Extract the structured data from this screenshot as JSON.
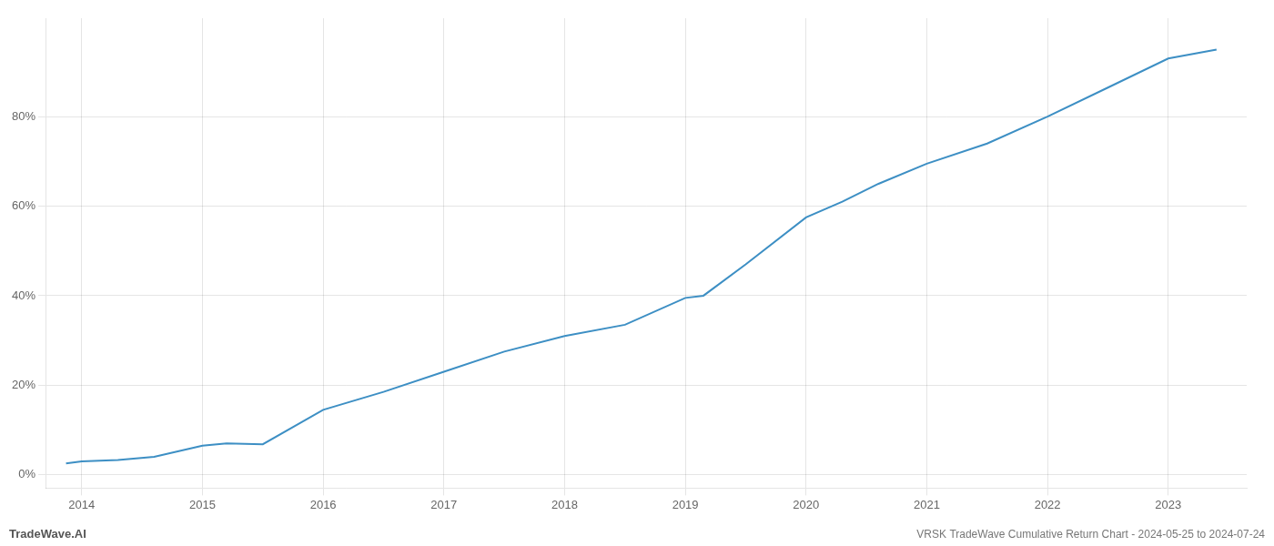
{
  "chart_data": {
    "type": "line",
    "x": [
      2013.87,
      2014.0,
      2014.3,
      2014.6,
      2015.0,
      2015.2,
      2015.5,
      2016.0,
      2016.5,
      2017.0,
      2017.5,
      2018.0,
      2018.5,
      2019.0,
      2019.15,
      2019.5,
      2020.0,
      2020.3,
      2020.6,
      2021.0,
      2021.5,
      2022.0,
      2022.5,
      2023.0,
      2023.4
    ],
    "values": [
      2.5,
      3.0,
      3.3,
      4.0,
      6.5,
      7.0,
      6.8,
      14.5,
      18.5,
      23.0,
      27.5,
      31.0,
      33.5,
      39.5,
      40.0,
      47.0,
      57.5,
      61.0,
      65.0,
      69.5,
      74.0,
      80.0,
      86.5,
      93.0,
      95.0
    ],
    "color": "#3d8fc4",
    "xlim": [
      2013.7,
      2023.65
    ],
    "xticks": [
      2014,
      2015,
      2016,
      2017,
      2018,
      2019,
      2020,
      2021,
      2022,
      2023
    ],
    "ylim": [
      -3,
      102
    ],
    "yticks": [
      {
        "value": 0,
        "label": "0%"
      },
      {
        "value": 20,
        "label": "20%"
      },
      {
        "value": 40,
        "label": "40%"
      },
      {
        "value": 60,
        "label": "60%"
      },
      {
        "value": 80,
        "label": "80%"
      }
    ],
    "grid": true,
    "annotations": [
      "TradeWave.AI",
      "VRSK TradeWave Cumulative Return Chart - 2024-05-25 to 2024-07-24"
    ]
  }
}
